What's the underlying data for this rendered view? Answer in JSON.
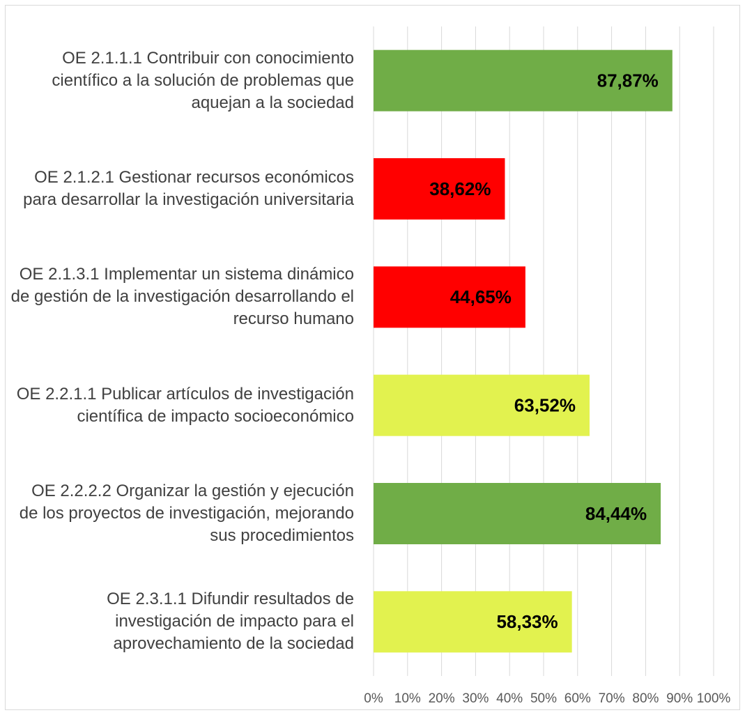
{
  "chart_data": {
    "type": "barh",
    "categories": [
      "OE 2.1.1.1 Contribuir con conocimiento científico a la solución de problemas que aquejan a la sociedad",
      "OE 2.1.2.1 Gestionar recursos económicos para desarrollar la investigación universitaria",
      "OE 2.1.3.1 Implementar un sistema dinámico de gestión de la investigación desarrollando el recurso humano",
      "OE 2.2.1.1 Publicar artículos de investigación científica de impacto socioeconómico",
      "OE 2.2.2.2 Organizar la gestión y ejecución de los proyectos de investigación, mejorando sus procedimientos",
      "OE 2.3.1.1 Difundir resultados de investigación de impacto para el aprovechamiento de la sociedad"
    ],
    "values": [
      87.87,
      38.62,
      44.65,
      63.52,
      84.44,
      58.33
    ],
    "value_labels": [
      "87,87%",
      "38,62%",
      "44,65%",
      "63,52%",
      "84,44%",
      "58,33%"
    ],
    "colors": [
      "#70ad47",
      "#ff0000",
      "#ff0000",
      "#e2f24f",
      "#70ad47",
      "#e2f24f"
    ],
    "xlim": [
      0,
      100
    ],
    "xticks": [
      {
        "value": 0,
        "label": "0%"
      },
      {
        "value": 10,
        "label": "10%"
      },
      {
        "value": 20,
        "label": "20%"
      },
      {
        "value": 30,
        "label": "30%"
      },
      {
        "value": 40,
        "label": "40%"
      },
      {
        "value": 50,
        "label": "50%"
      },
      {
        "value": 60,
        "label": "60%"
      },
      {
        "value": 70,
        "label": "70%"
      },
      {
        "value": 80,
        "label": "80%"
      },
      {
        "value": 90,
        "label": "90%"
      },
      {
        "value": 100,
        "label": "100%"
      }
    ],
    "grid": true
  }
}
